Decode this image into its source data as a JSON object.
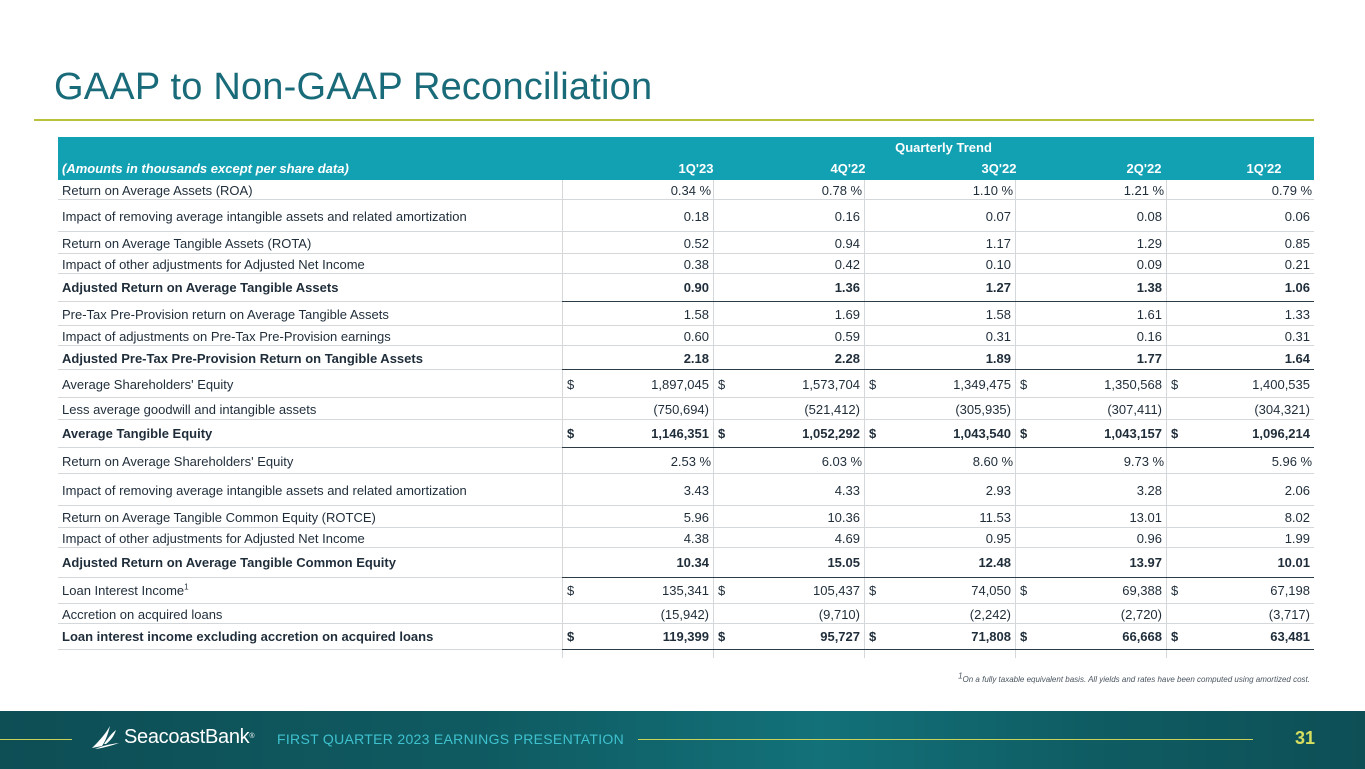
{
  "title": "GAAP to Non-GAAP Reconciliation",
  "table": {
    "header_group": "Quarterly Trend",
    "header_label": "(Amounts in thousands except per share data)",
    "columns": [
      "1Q'23",
      "4Q'22",
      "3Q'22",
      "2Q'22",
      "1Q'22"
    ],
    "rows": [
      {
        "label": "Return on Average Assets (ROA)",
        "values": [
          "0.34",
          "0.78",
          "1.10",
          "1.21",
          "0.79"
        ],
        "suffix": "%"
      },
      {
        "label": "Impact of removing average intangible assets and related amortization",
        "values": [
          "0.18",
          "0.16",
          "0.07",
          "0.08",
          "0.06"
        ]
      },
      {
        "label": "Return on Average Tangible Assets (ROTA)",
        "values": [
          "0.52",
          "0.94",
          "1.17",
          "1.29",
          "0.85"
        ]
      },
      {
        "label": "Impact of other adjustments for Adjusted Net Income",
        "values": [
          "0.38",
          "0.42",
          "0.10",
          "0.09",
          "0.21"
        ]
      },
      {
        "label": "Adjusted Return on Average Tangible Assets",
        "values": [
          "0.90",
          "1.36",
          "1.27",
          "1.38",
          "1.06"
        ],
        "bold": true
      },
      {
        "label": "Pre-Tax Pre-Provision return on Average Tangible Assets",
        "values": [
          "1.58",
          "1.69",
          "1.58",
          "1.61",
          "1.33"
        ]
      },
      {
        "label": "Impact of adjustments on Pre-Tax Pre-Provision earnings",
        "values": [
          "0.60",
          "0.59",
          "0.31",
          "0.16",
          "0.31"
        ]
      },
      {
        "label": "Adjusted Pre-Tax Pre-Provision Return on Tangible Assets",
        "values": [
          "2.18",
          "2.28",
          "1.89",
          "1.77",
          "1.64"
        ],
        "bold": true
      },
      {
        "label": "Average Shareholders' Equity",
        "values": [
          "1,897,045",
          "1,573,704",
          "1,349,475",
          "1,350,568",
          "1,400,535"
        ],
        "dollar": "$"
      },
      {
        "label": "Less average goodwill and intangible assets",
        "values": [
          "(750,694)",
          "(521,412)",
          "(305,935)",
          "(307,411)",
          "(304,321)"
        ]
      },
      {
        "label": "Average Tangible Equity",
        "values": [
          "1,146,351",
          "1,052,292",
          "1,043,540",
          "1,043,157",
          "1,096,214"
        ],
        "dollar": "$",
        "bold": true
      },
      {
        "label": "Return on Average Shareholders' Equity",
        "values": [
          "2.53",
          "6.03",
          "8.60",
          "9.73",
          "5.96"
        ],
        "suffix": "%"
      },
      {
        "label": "Impact of removing average intangible assets and related amortization",
        "values": [
          "3.43",
          "4.33",
          "2.93",
          "3.28",
          "2.06"
        ]
      },
      {
        "label": "Return on Average Tangible Common Equity (ROTCE)",
        "values": [
          "5.96",
          "10.36",
          "11.53",
          "13.01",
          "8.02"
        ]
      },
      {
        "label": "Impact of other adjustments for Adjusted Net Income",
        "values": [
          "4.38",
          "4.69",
          "0.95",
          "0.96",
          "1.99"
        ]
      },
      {
        "label": "Adjusted Return on Average Tangible Common Equity",
        "values": [
          "10.34",
          "15.05",
          "12.48",
          "13.97",
          "10.01"
        ],
        "bold": true
      },
      {
        "label": "Loan Interest Income",
        "sup": "1",
        "values": [
          "135,341",
          "105,437",
          "74,050",
          "69,388",
          "67,198"
        ],
        "dollar": "$"
      },
      {
        "label": "Accretion on acquired loans",
        "values": [
          "(15,942)",
          "(9,710)",
          "(2,242)",
          "(2,720)",
          "(3,717)"
        ]
      },
      {
        "label": "Loan interest income excluding accretion on acquired loans",
        "values": [
          "119,399",
          "95,727",
          "71,808",
          "66,668",
          "63,481"
        ],
        "dollar": "$",
        "bold": true
      }
    ]
  },
  "footnote": {
    "sup": "1",
    "text": "On a fully taxable equivalent basis. All yields and rates have been computed using amortized cost."
  },
  "footer": {
    "brand": "SeacoastBank",
    "trademark": "®",
    "presentation": "FIRST QUARTER 2023 EARNINGS PRESENTATION",
    "page": "31"
  },
  "colors": {
    "title": "#1a6b7a",
    "header": "#12a0b3",
    "accent": "#b9c23a",
    "footer": "#0f5a61"
  }
}
